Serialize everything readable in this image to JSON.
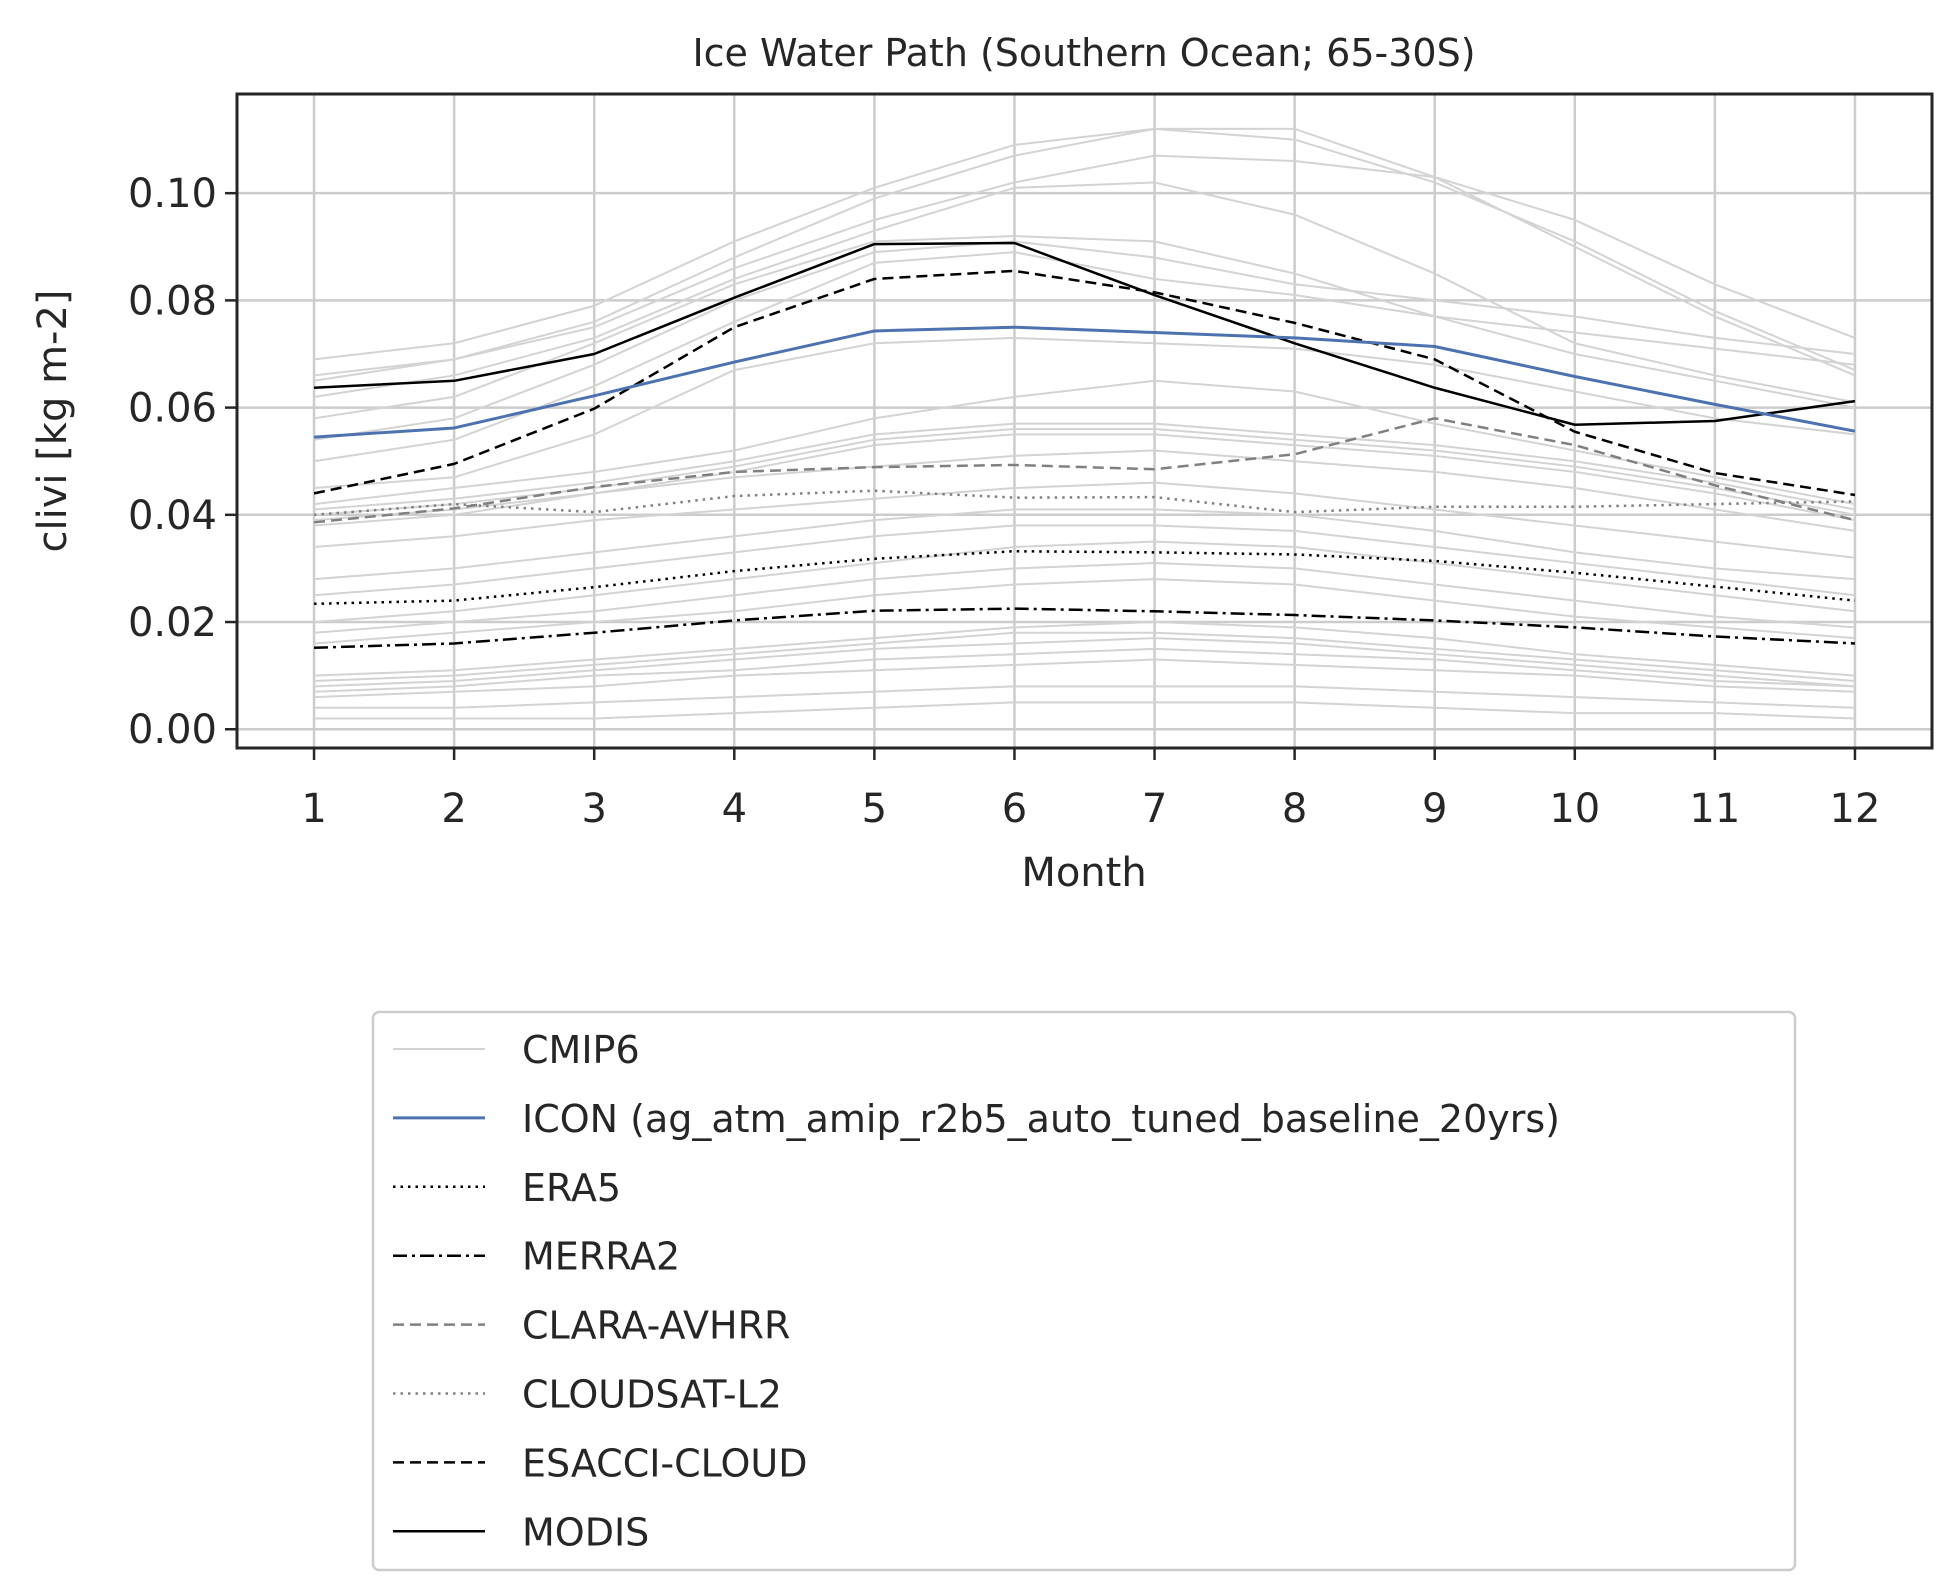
{
  "chart_data": {
    "type": "line",
    "title": "Ice Water Path (Southern Ocean; 65-30S)",
    "xlabel": "Month",
    "ylabel": "clivi [kg m-2]",
    "x": [
      1,
      2,
      3,
      4,
      5,
      6,
      7,
      8,
      9,
      10,
      11,
      12
    ],
    "xticks": [
      "1",
      "2",
      "3",
      "4",
      "5",
      "6",
      "7",
      "8",
      "9",
      "10",
      "11",
      "12"
    ],
    "xlim": [
      0.45,
      12.55
    ],
    "ylim": [
      -0.0035,
      0.1185
    ],
    "yticks": [
      0.0,
      0.02,
      0.04,
      0.06,
      0.08,
      0.1
    ],
    "ytick_labels": [
      "0.00",
      "0.02",
      "0.04",
      "0.06",
      "0.08",
      "0.10"
    ],
    "grid": true,
    "legend": {
      "placement": "below-center"
    },
    "colors": {
      "cmip6": "#d3d3d3",
      "icon": "#4c72b0",
      "black": "#000000",
      "grey": "#808080",
      "grid": "#cccccc",
      "axes": "#262626"
    },
    "cmip6_name": "CMIP6",
    "cmip6_members": [
      [
        0.069,
        0.072,
        0.079,
        0.091,
        0.101,
        0.109,
        0.112,
        0.112,
        0.103,
        0.095,
        0.083,
        0.073
      ],
      [
        0.066,
        0.069,
        0.076,
        0.088,
        0.099,
        0.107,
        0.112,
        0.11,
        0.102,
        0.091,
        0.078,
        0.067
      ],
      [
        0.065,
        0.069,
        0.075,
        0.086,
        0.095,
        0.102,
        0.107,
        0.106,
        0.103,
        0.09,
        0.077,
        0.066
      ],
      [
        0.062,
        0.066,
        0.073,
        0.084,
        0.093,
        0.101,
        0.102,
        0.096,
        0.085,
        0.072,
        0.066,
        0.061
      ],
      [
        0.058,
        0.062,
        0.072,
        0.083,
        0.091,
        0.092,
        0.091,
        0.085,
        0.077,
        0.07,
        0.065,
        0.06
      ],
      [
        0.054,
        0.058,
        0.068,
        0.08,
        0.089,
        0.091,
        0.088,
        0.083,
        0.08,
        0.077,
        0.073,
        0.07
      ],
      [
        0.05,
        0.054,
        0.064,
        0.076,
        0.087,
        0.089,
        0.084,
        0.081,
        0.077,
        0.074,
        0.071,
        0.068
      ],
      [
        0.045,
        0.047,
        0.055,
        0.067,
        0.072,
        0.073,
        0.072,
        0.071,
        0.068,
        0.063,
        0.058,
        0.055
      ],
      [
        0.042,
        0.045,
        0.048,
        0.052,
        0.058,
        0.062,
        0.065,
        0.063,
        0.057,
        0.052,
        0.047,
        0.042
      ],
      [
        0.041,
        0.043,
        0.046,
        0.05,
        0.055,
        0.057,
        0.057,
        0.055,
        0.053,
        0.05,
        0.046,
        0.041
      ],
      [
        0.04,
        0.042,
        0.045,
        0.049,
        0.054,
        0.056,
        0.056,
        0.054,
        0.052,
        0.049,
        0.045,
        0.04
      ],
      [
        0.039,
        0.041,
        0.044,
        0.048,
        0.053,
        0.055,
        0.055,
        0.053,
        0.051,
        0.048,
        0.044,
        0.039
      ],
      [
        0.038,
        0.04,
        0.044,
        0.047,
        0.049,
        0.051,
        0.052,
        0.05,
        0.048,
        0.045,
        0.041,
        0.037
      ],
      [
        0.034,
        0.036,
        0.039,
        0.041,
        0.043,
        0.045,
        0.046,
        0.044,
        0.041,
        0.038,
        0.035,
        0.032
      ],
      [
        0.028,
        0.03,
        0.033,
        0.036,
        0.039,
        0.041,
        0.041,
        0.04,
        0.037,
        0.033,
        0.03,
        0.028
      ],
      [
        0.025,
        0.027,
        0.03,
        0.033,
        0.036,
        0.038,
        0.038,
        0.037,
        0.034,
        0.031,
        0.028,
        0.025
      ],
      [
        0.02,
        0.022,
        0.025,
        0.028,
        0.031,
        0.034,
        0.035,
        0.034,
        0.031,
        0.028,
        0.025,
        0.022
      ],
      [
        0.018,
        0.02,
        0.022,
        0.025,
        0.028,
        0.03,
        0.031,
        0.03,
        0.027,
        0.024,
        0.021,
        0.019
      ],
      [
        0.016,
        0.018,
        0.02,
        0.022,
        0.025,
        0.027,
        0.028,
        0.027,
        0.024,
        0.021,
        0.019,
        0.017
      ],
      [
        0.01,
        0.011,
        0.013,
        0.015,
        0.017,
        0.019,
        0.02,
        0.019,
        0.017,
        0.014,
        0.012,
        0.01
      ],
      [
        0.009,
        0.01,
        0.012,
        0.014,
        0.016,
        0.018,
        0.018,
        0.017,
        0.015,
        0.013,
        0.011,
        0.009
      ],
      [
        0.008,
        0.009,
        0.011,
        0.013,
        0.015,
        0.016,
        0.017,
        0.016,
        0.014,
        0.012,
        0.01,
        0.008
      ],
      [
        0.007,
        0.008,
        0.01,
        0.011,
        0.013,
        0.014,
        0.015,
        0.014,
        0.013,
        0.011,
        0.009,
        0.008
      ],
      [
        0.006,
        0.007,
        0.008,
        0.01,
        0.011,
        0.012,
        0.013,
        0.012,
        0.011,
        0.01,
        0.008,
        0.007
      ],
      [
        0.004,
        0.004,
        0.005,
        0.006,
        0.007,
        0.008,
        0.008,
        0.008,
        0.007,
        0.006,
        0.005,
        0.004
      ],
      [
        0.002,
        0.002,
        0.002,
        0.003,
        0.004,
        0.005,
        0.005,
        0.005,
        0.004,
        0.003,
        0.003,
        0.002
      ]
    ],
    "series": [
      {
        "name": "ICON (ag_atm_amip_r2b5_auto_tuned_baseline_20yrs)",
        "color": "#4c72b0",
        "style": "solid",
        "width": 3,
        "values": [
          0.0545,
          0.0562,
          0.0622,
          0.0685,
          0.0743,
          0.075,
          0.074,
          0.073,
          0.0714,
          0.0658,
          0.0606,
          0.0556
        ]
      },
      {
        "name": "ERA5",
        "color": "#000000",
        "style": "dotted",
        "width": 2.5,
        "values": [
          0.0234,
          0.024,
          0.0265,
          0.0295,
          0.0318,
          0.0332,
          0.033,
          0.0326,
          0.0314,
          0.0292,
          0.0266,
          0.024
        ]
      },
      {
        "name": "MERRA2",
        "color": "#000000",
        "style": "dashdot",
        "width": 2.5,
        "values": [
          0.0152,
          0.016,
          0.018,
          0.0203,
          0.0221,
          0.0225,
          0.022,
          0.0213,
          0.0203,
          0.019,
          0.0173,
          0.016
        ]
      },
      {
        "name": "CLARA-AVHRR",
        "color": "#808080",
        "style": "dashed",
        "width": 2.5,
        "values": [
          0.0386,
          0.0412,
          0.0452,
          0.048,
          0.0489,
          0.0493,
          0.0485,
          0.0513,
          0.058,
          0.053,
          0.0455,
          0.039
        ]
      },
      {
        "name": "CLOUDSAT-L2",
        "color": "#808080",
        "style": "dotted",
        "width": 2.5,
        "values": [
          0.04,
          0.042,
          0.0405,
          0.0435,
          0.0445,
          0.0432,
          0.0433,
          0.0405,
          0.0415,
          0.0415,
          0.042,
          0.0425
        ]
      },
      {
        "name": "ESACCI-CLOUD",
        "color": "#000000",
        "style": "dashed",
        "width": 2.5,
        "values": [
          0.044,
          0.0495,
          0.0598,
          0.075,
          0.084,
          0.0855,
          0.0815,
          0.0758,
          0.069,
          0.0555,
          0.0478,
          0.0437
        ]
      },
      {
        "name": "MODIS",
        "color": "#000000",
        "style": "solid",
        "width": 2.5,
        "values": [
          0.0637,
          0.065,
          0.07,
          0.0805,
          0.0905,
          0.0907,
          0.081,
          0.072,
          0.0637,
          0.0568,
          0.0575,
          0.0612
        ]
      }
    ]
  }
}
